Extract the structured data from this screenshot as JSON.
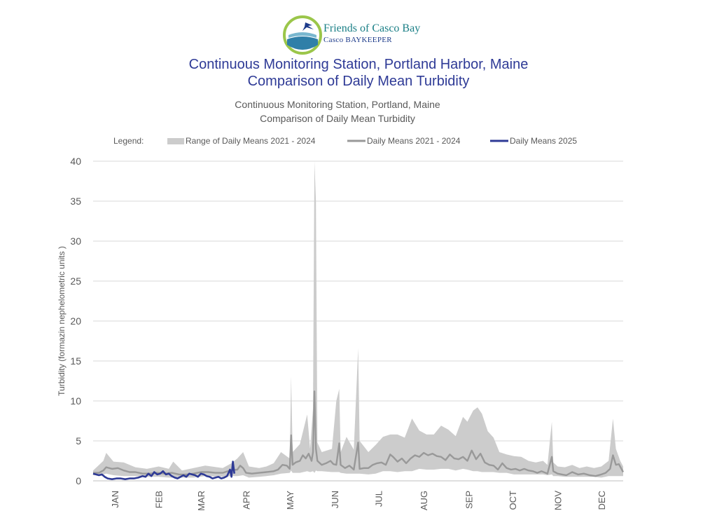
{
  "logo": {
    "line1": "Friends of Casco Bay",
    "line2": "Casco BAYKEEPER"
  },
  "header": {
    "title_line1": "Continuous Monitoring Station, Portland Harbor, Maine",
    "title_line2": "Comparison of Daily Mean Turbidity"
  },
  "colors": {
    "title": "#2e3a96",
    "range_fill": "#cccccc",
    "mean_2124": "#999999",
    "mean_2025": "#2e3a96",
    "grid": "#d9d9d9",
    "text": "#595959"
  },
  "chart_data": {
    "type": "line",
    "title": "Continuous Monitoring Station, Portland, Maine",
    "subtitle": "Comparison of Daily Mean Turbidity",
    "ylabel": "Turbidity (formazin nephelometric units )",
    "xlabel": "",
    "ylim": [
      0,
      40
    ],
    "yticks": [
      0,
      5,
      10,
      15,
      20,
      25,
      30,
      35,
      40
    ],
    "grid": true,
    "legend_position": "top",
    "legend": {
      "label": "Legend:",
      "entries": [
        "Range of Daily Means 2021 - 2024",
        "Daily Means 2021 - 2024",
        "Daily Means 2025"
      ]
    },
    "x_domain": [
      1,
      365
    ],
    "x_categories": [
      {
        "label": "JAN",
        "day": 16
      },
      {
        "label": "FEB",
        "day": 46
      },
      {
        "label": "MAR",
        "day": 75
      },
      {
        "label": "APR",
        "day": 106
      },
      {
        "label": "MAY",
        "day": 136
      },
      {
        "label": "JUN",
        "day": 167
      },
      {
        "label": "JUL",
        "day": 197
      },
      {
        "label": "AUG",
        "day": 228
      },
      {
        "label": "SEP",
        "day": 259
      },
      {
        "label": "OCT",
        "day": 289
      },
      {
        "label": "NOV",
        "day": 320
      },
      {
        "label": "DEC",
        "day": 350
      }
    ],
    "series": [
      {
        "name": "Range of Daily Means 2021 - 2024",
        "kind": "range",
        "points": [
          [
            1,
            0.7,
            1.3
          ],
          [
            8,
            0.8,
            2.5
          ],
          [
            10,
            0.9,
            3.5
          ],
          [
            15,
            0.7,
            2.4
          ],
          [
            22,
            0.6,
            2.3
          ],
          [
            30,
            0.6,
            1.7
          ],
          [
            38,
            0.5,
            1.5
          ],
          [
            46,
            0.5,
            1.8
          ],
          [
            53,
            0.4,
            1.5
          ],
          [
            56,
            0.4,
            2.4
          ],
          [
            62,
            0.4,
            1.3
          ],
          [
            70,
            0.4,
            1.6
          ],
          [
            78,
            0.6,
            1.9
          ],
          [
            90,
            0.5,
            1.6
          ],
          [
            96,
            0.6,
            2.2
          ],
          [
            100,
            0.6,
            2.8
          ],
          [
            104,
            0.7,
            3.6
          ],
          [
            108,
            0.4,
            1.8
          ],
          [
            115,
            0.5,
            1.6
          ],
          [
            120,
            0.6,
            1.8
          ],
          [
            125,
            0.7,
            2.2
          ],
          [
            130,
            0.9,
            3.6
          ],
          [
            136,
            1.0,
            2.8
          ],
          [
            137,
            1.3,
            13.1
          ],
          [
            138,
            1.0,
            3.6
          ],
          [
            143,
            1.0,
            4.6
          ],
          [
            148,
            1.2,
            8.3
          ],
          [
            150,
            1.1,
            4.0
          ],
          [
            152,
            1.2,
            9.0
          ],
          [
            153,
            1.0,
            40.0
          ],
          [
            154,
            1.3,
            35.0
          ],
          [
            155,
            1.2,
            4.8
          ],
          [
            158,
            1.2,
            3.6
          ],
          [
            165,
            1.1,
            4.0
          ],
          [
            168,
            1.1,
            10.0
          ],
          [
            170,
            1.1,
            11.5
          ],
          [
            171,
            1.0,
            3.6
          ],
          [
            175,
            0.9,
            5.5
          ],
          [
            180,
            0.9,
            3.9
          ],
          [
            183,
            0.9,
            16.6
          ],
          [
            184,
            0.9,
            5.0
          ],
          [
            190,
            0.8,
            3.6
          ],
          [
            195,
            0.9,
            4.5
          ],
          [
            200,
            1.2,
            5.5
          ],
          [
            205,
            1.2,
            5.8
          ],
          [
            210,
            1.1,
            5.8
          ],
          [
            215,
            1.2,
            5.4
          ],
          [
            220,
            1.2,
            7.8
          ],
          [
            225,
            1.5,
            6.3
          ],
          [
            230,
            1.4,
            5.8
          ],
          [
            235,
            1.4,
            5.8
          ],
          [
            240,
            1.5,
            6.9
          ],
          [
            245,
            1.5,
            6.4
          ],
          [
            250,
            1.3,
            5.6
          ],
          [
            255,
            1.5,
            8.0
          ],
          [
            258,
            1.4,
            7.4
          ],
          [
            262,
            1.2,
            8.8
          ],
          [
            265,
            1.2,
            9.2
          ],
          [
            268,
            1.1,
            8.4
          ],
          [
            272,
            1.1,
            6.2
          ],
          [
            276,
            1.1,
            5.4
          ],
          [
            280,
            1.0,
            3.6
          ],
          [
            285,
            1.0,
            3.3
          ],
          [
            290,
            0.8,
            3.1
          ],
          [
            295,
            0.8,
            3.0
          ],
          [
            300,
            0.8,
            2.5
          ],
          [
            305,
            0.8,
            2.3
          ],
          [
            310,
            0.8,
            2.5
          ],
          [
            313,
            0.7,
            2.0
          ],
          [
            316,
            0.8,
            7.4
          ],
          [
            317,
            0.6,
            2.3
          ],
          [
            320,
            0.6,
            1.8
          ],
          [
            325,
            0.5,
            1.7
          ],
          [
            330,
            0.5,
            2.0
          ],
          [
            335,
            0.5,
            1.6
          ],
          [
            340,
            0.5,
            1.8
          ],
          [
            345,
            0.5,
            1.6
          ],
          [
            350,
            0.4,
            1.8
          ],
          [
            355,
            0.6,
            2.5
          ],
          [
            358,
            0.6,
            7.8
          ],
          [
            360,
            0.6,
            4.0
          ],
          [
            363,
            0.6,
            2.5
          ],
          [
            365,
            0.6,
            1.8
          ]
        ]
      },
      {
        "name": "Daily Means 2021 - 2024",
        "kind": "line",
        "points": [
          [
            1,
            1.0
          ],
          [
            5,
            1.0
          ],
          [
            8,
            1.3
          ],
          [
            10,
            1.7
          ],
          [
            14,
            1.5
          ],
          [
            18,
            1.6
          ],
          [
            22,
            1.3
          ],
          [
            26,
            1.1
          ],
          [
            30,
            1.1
          ],
          [
            35,
            0.9
          ],
          [
            40,
            0.9
          ],
          [
            45,
            1.0
          ],
          [
            50,
            0.9
          ],
          [
            55,
            1.0
          ],
          [
            60,
            0.8
          ],
          [
            65,
            0.8
          ],
          [
            70,
            0.9
          ],
          [
            75,
            1.1
          ],
          [
            80,
            1.1
          ],
          [
            85,
            1.0
          ],
          [
            90,
            1.0
          ],
          [
            95,
            1.3
          ],
          [
            100,
            1.4
          ],
          [
            102,
            1.9
          ],
          [
            104,
            1.6
          ],
          [
            106,
            1.0
          ],
          [
            110,
            0.9
          ],
          [
            115,
            1.0
          ],
          [
            120,
            1.1
          ],
          [
            125,
            1.2
          ],
          [
            128,
            1.4
          ],
          [
            131,
            2.0
          ],
          [
            134,
            1.9
          ],
          [
            136,
            1.5
          ],
          [
            137,
            5.7
          ],
          [
            138,
            2.0
          ],
          [
            140,
            2.3
          ],
          [
            143,
            2.5
          ],
          [
            145,
            3.2
          ],
          [
            147,
            2.8
          ],
          [
            149,
            3.4
          ],
          [
            151,
            2.5
          ],
          [
            152,
            3.6
          ],
          [
            153,
            11.2
          ],
          [
            154,
            4.0
          ],
          [
            155,
            2.5
          ],
          [
            158,
            2.0
          ],
          [
            161,
            2.2
          ],
          [
            164,
            2.5
          ],
          [
            166,
            2.1
          ],
          [
            168,
            2.0
          ],
          [
            170,
            4.7
          ],
          [
            171,
            2.0
          ],
          [
            174,
            1.6
          ],
          [
            177,
            1.9
          ],
          [
            180,
            1.4
          ],
          [
            183,
            4.8
          ],
          [
            184,
            1.5
          ],
          [
            187,
            1.6
          ],
          [
            190,
            1.6
          ],
          [
            193,
            2.0
          ],
          [
            196,
            2.2
          ],
          [
            199,
            2.3
          ],
          [
            202,
            2.0
          ],
          [
            205,
            3.3
          ],
          [
            207,
            3.0
          ],
          [
            210,
            2.4
          ],
          [
            213,
            2.8
          ],
          [
            216,
            2.2
          ],
          [
            219,
            2.8
          ],
          [
            222,
            3.2
          ],
          [
            225,
            3.0
          ],
          [
            228,
            3.5
          ],
          [
            231,
            3.2
          ],
          [
            234,
            3.4
          ],
          [
            237,
            3.1
          ],
          [
            240,
            3.0
          ],
          [
            243,
            2.6
          ],
          [
            246,
            3.3
          ],
          [
            249,
            2.8
          ],
          [
            252,
            2.7
          ],
          [
            255,
            3.0
          ],
          [
            258,
            2.5
          ],
          [
            261,
            3.8
          ],
          [
            264,
            2.7
          ],
          [
            267,
            3.4
          ],
          [
            270,
            2.3
          ],
          [
            273,
            2.0
          ],
          [
            276,
            1.9
          ],
          [
            279,
            1.4
          ],
          [
            282,
            2.2
          ],
          [
            285,
            1.6
          ],
          [
            288,
            1.4
          ],
          [
            291,
            1.5
          ],
          [
            294,
            1.3
          ],
          [
            297,
            1.5
          ],
          [
            300,
            1.3
          ],
          [
            303,
            1.2
          ],
          [
            306,
            1.0
          ],
          [
            309,
            1.2
          ],
          [
            313,
            0.9
          ],
          [
            316,
            3.0
          ],
          [
            317,
            1.2
          ],
          [
            320,
            0.9
          ],
          [
            323,
            0.8
          ],
          [
            326,
            0.7
          ],
          [
            330,
            1.1
          ],
          [
            334,
            0.8
          ],
          [
            338,
            0.9
          ],
          [
            342,
            0.7
          ],
          [
            346,
            0.6
          ],
          [
            350,
            0.8
          ],
          [
            353,
            1.0
          ],
          [
            356,
            1.5
          ],
          [
            358,
            3.2
          ],
          [
            360,
            2.0
          ],
          [
            362,
            2.1
          ],
          [
            365,
            1.1
          ]
        ]
      },
      {
        "name": "Daily Means 2025",
        "kind": "line",
        "points": [
          [
            1,
            0.9
          ],
          [
            3,
            0.8
          ],
          [
            5,
            0.7
          ],
          [
            7,
            0.8
          ],
          [
            9,
            0.5
          ],
          [
            11,
            0.3
          ],
          [
            14,
            0.2
          ],
          [
            17,
            0.3
          ],
          [
            20,
            0.3
          ],
          [
            23,
            0.2
          ],
          [
            26,
            0.3
          ],
          [
            29,
            0.3
          ],
          [
            32,
            0.4
          ],
          [
            35,
            0.6
          ],
          [
            37,
            0.5
          ],
          [
            39,
            0.9
          ],
          [
            41,
            0.6
          ],
          [
            43,
            1.1
          ],
          [
            45,
            0.8
          ],
          [
            47,
            0.9
          ],
          [
            49,
            1.2
          ],
          [
            51,
            0.8
          ],
          [
            53,
            0.9
          ],
          [
            55,
            0.6
          ],
          [
            57,
            0.4
          ],
          [
            59,
            0.3
          ],
          [
            61,
            0.5
          ],
          [
            63,
            0.7
          ],
          [
            65,
            0.5
          ],
          [
            67,
            0.9
          ],
          [
            69,
            0.8
          ],
          [
            71,
            0.7
          ],
          [
            73,
            0.5
          ],
          [
            75,
            0.9
          ],
          [
            77,
            0.8
          ],
          [
            79,
            0.6
          ],
          [
            81,
            0.5
          ],
          [
            83,
            0.3
          ],
          [
            85,
            0.4
          ],
          [
            87,
            0.5
          ],
          [
            89,
            0.3
          ],
          [
            91,
            0.4
          ],
          [
            93,
            0.6
          ],
          [
            95,
            1.4
          ],
          [
            96,
            0.5
          ],
          [
            97,
            2.4
          ],
          [
            98,
            0.9
          ]
        ]
      }
    ]
  }
}
